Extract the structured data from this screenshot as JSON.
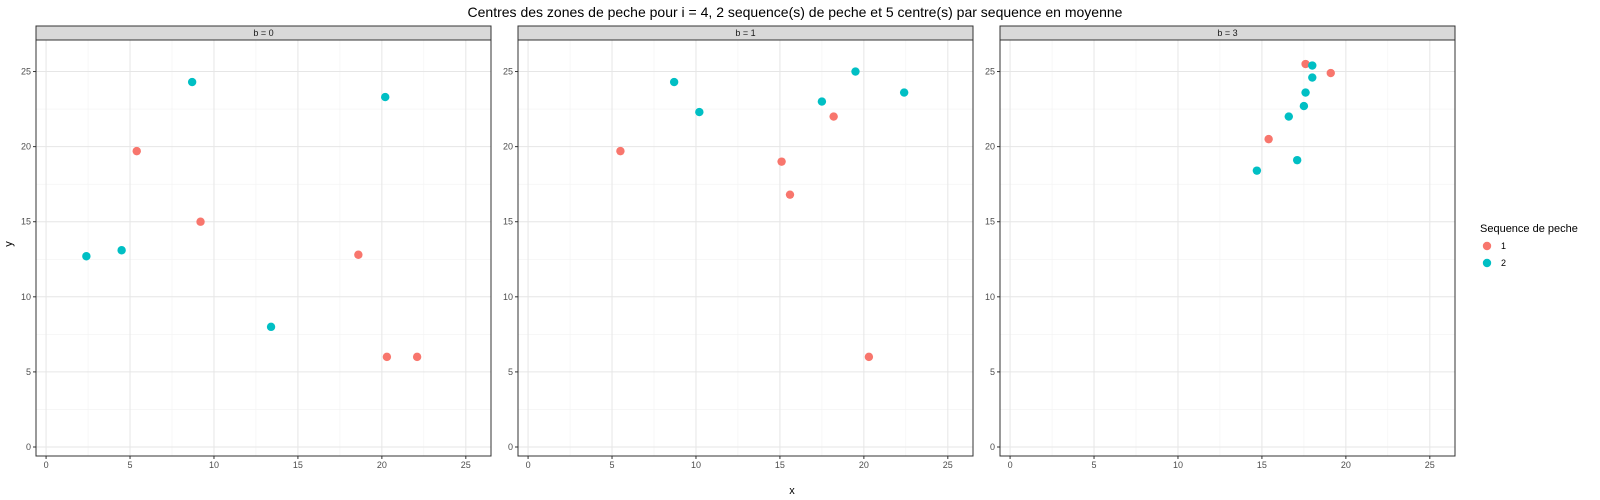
{
  "chart_data": {
    "type": "scatter",
    "title": "Centres des zones de peche pour i = 4, 2 sequence(s) de peche et 5 centre(s) par sequence en moyenne",
    "xlabel": "x",
    "ylabel": "y",
    "xlim": [
      -0.6,
      26.5
    ],
    "ylim": [
      -0.6,
      27.1
    ],
    "x_ticks": [
      0,
      5,
      10,
      15,
      20,
      25
    ],
    "y_ticks": [
      0,
      5,
      10,
      15,
      20,
      25
    ],
    "grid": true,
    "legend": {
      "title": "Sequence de peche",
      "position": "right",
      "entries": [
        {
          "label": "1",
          "color": "#F8766D"
        },
        {
          "label": "2",
          "color": "#00BFC4"
        }
      ]
    },
    "panels": [
      {
        "strip": "b = 0",
        "series": [
          {
            "name": "1",
            "color": "#F8766D",
            "points": [
              [
                5.4,
                19.7
              ],
              [
                9.2,
                15.0
              ],
              [
                18.6,
                12.8
              ],
              [
                20.3,
                6.0
              ],
              [
                22.1,
                6.0
              ]
            ]
          },
          {
            "name": "2",
            "color": "#00BFC4",
            "points": [
              [
                2.4,
                12.7
              ],
              [
                4.5,
                13.1
              ],
              [
                8.7,
                24.3
              ],
              [
                13.4,
                8.0
              ],
              [
                20.2,
                23.3
              ]
            ]
          }
        ]
      },
      {
        "strip": "b = 1",
        "series": [
          {
            "name": "1",
            "color": "#F8766D",
            "points": [
              [
                5.5,
                19.7
              ],
              [
                15.1,
                19.0
              ],
              [
                15.6,
                16.8
              ],
              [
                18.2,
                22.0
              ],
              [
                20.3,
                6.0
              ]
            ]
          },
          {
            "name": "2",
            "color": "#00BFC4",
            "points": [
              [
                8.7,
                24.3
              ],
              [
                10.2,
                22.3
              ],
              [
                17.5,
                23.0
              ],
              [
                19.5,
                25.0
              ],
              [
                22.4,
                23.6
              ]
            ]
          }
        ]
      },
      {
        "strip": "b = 3",
        "series": [
          {
            "name": "1",
            "color": "#F8766D",
            "points": [
              [
                15.4,
                20.5
              ],
              [
                17.6,
                25.5
              ],
              [
                19.1,
                24.9
              ]
            ]
          },
          {
            "name": "2",
            "color": "#00BFC4",
            "points": [
              [
                14.7,
                18.4
              ],
              [
                16.6,
                22.0
              ],
              [
                17.1,
                19.1
              ],
              [
                17.5,
                22.7
              ],
              [
                17.6,
                23.6
              ],
              [
                18.0,
                24.6
              ],
              [
                18.0,
                25.4
              ]
            ]
          }
        ]
      }
    ]
  }
}
